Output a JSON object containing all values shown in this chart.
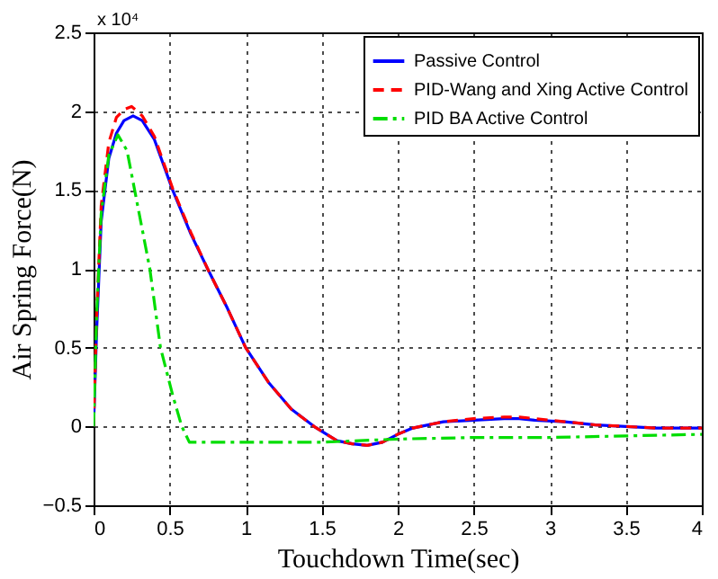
{
  "chart_data": {
    "type": "line",
    "xlabel": "Touchdown Time(sec)",
    "ylabel": "Air Spring Force(N)",
    "annotations": [
      "x 10⁴"
    ],
    "xlim": [
      0,
      4
    ],
    "xticks": [
      0,
      0.5,
      1,
      1.5,
      2,
      2.5,
      3,
      3.5,
      4
    ],
    "ylim": [
      -0.5,
      2.5
    ],
    "yticks": [
      -0.5,
      0,
      0.5,
      1,
      1.5,
      2,
      2.5
    ],
    "grid": true,
    "legend": "top right",
    "marker": "none",
    "series": [
      {
        "name": "Passive Control",
        "color": "#0000ff",
        "line_style": "solid",
        "x": [
          0,
          0.02,
          0.05,
          0.1,
          0.15,
          0.2,
          0.26,
          0.32,
          0.4,
          0.52,
          0.64,
          0.75,
          0.88,
          1.0,
          1.15,
          1.3,
          1.45,
          1.6,
          1.7,
          1.8,
          1.9,
          2.0,
          2.1,
          2.3,
          2.5,
          2.7,
          2.8,
          2.9,
          3.1,
          3.3,
          3.5,
          3.7,
          4.0
        ],
        "values": [
          0,
          0.6,
          1.3,
          1.7,
          1.86,
          1.94,
          1.97,
          1.94,
          1.82,
          1.5,
          1.22,
          1.0,
          0.75,
          0.5,
          0.28,
          0.11,
          0.0,
          -0.09,
          -0.11,
          -0.12,
          -0.1,
          -0.05,
          -0.01,
          0.03,
          0.04,
          0.05,
          0.05,
          0.04,
          0.03,
          0.01,
          0.0,
          -0.01,
          -0.01
        ]
      },
      {
        "name": "PID-Wang and Xing Active Control",
        "color": "#ff0000",
        "line_style": "dashed",
        "x": [
          0,
          0.02,
          0.05,
          0.1,
          0.15,
          0.2,
          0.25,
          0.32,
          0.4,
          0.52,
          0.64,
          0.75,
          0.88,
          1.0,
          1.15,
          1.3,
          1.45,
          1.6,
          1.7,
          1.8,
          1.9,
          2.0,
          2.1,
          2.3,
          2.5,
          2.7,
          2.8,
          2.9,
          3.1,
          3.3,
          3.5,
          3.7,
          4.0
        ],
        "values": [
          0,
          0.7,
          1.4,
          1.8,
          1.96,
          2.01,
          2.03,
          1.97,
          1.84,
          1.51,
          1.23,
          1.0,
          0.75,
          0.5,
          0.28,
          0.11,
          0.0,
          -0.09,
          -0.11,
          -0.12,
          -0.1,
          -0.05,
          -0.01,
          0.03,
          0.05,
          0.06,
          0.06,
          0.05,
          0.03,
          0.01,
          0.0,
          -0.01,
          -0.01
        ]
      },
      {
        "name": "PID BA Active Control",
        "color": "#00dd00",
        "line_style": "dashdot",
        "x": [
          0,
          0.02,
          0.05,
          0.1,
          0.16,
          0.22,
          0.27,
          0.37,
          0.44,
          0.52,
          0.58,
          0.63,
          1.0,
          1.5,
          2.0,
          2.5,
          3.0,
          3.5,
          4.0
        ],
        "values": [
          0,
          0.7,
          1.35,
          1.72,
          1.85,
          1.75,
          1.5,
          1.0,
          0.5,
          0.2,
          0.0,
          -0.1,
          -0.1,
          -0.1,
          -0.08,
          -0.07,
          -0.07,
          -0.06,
          -0.05
        ]
      }
    ]
  }
}
